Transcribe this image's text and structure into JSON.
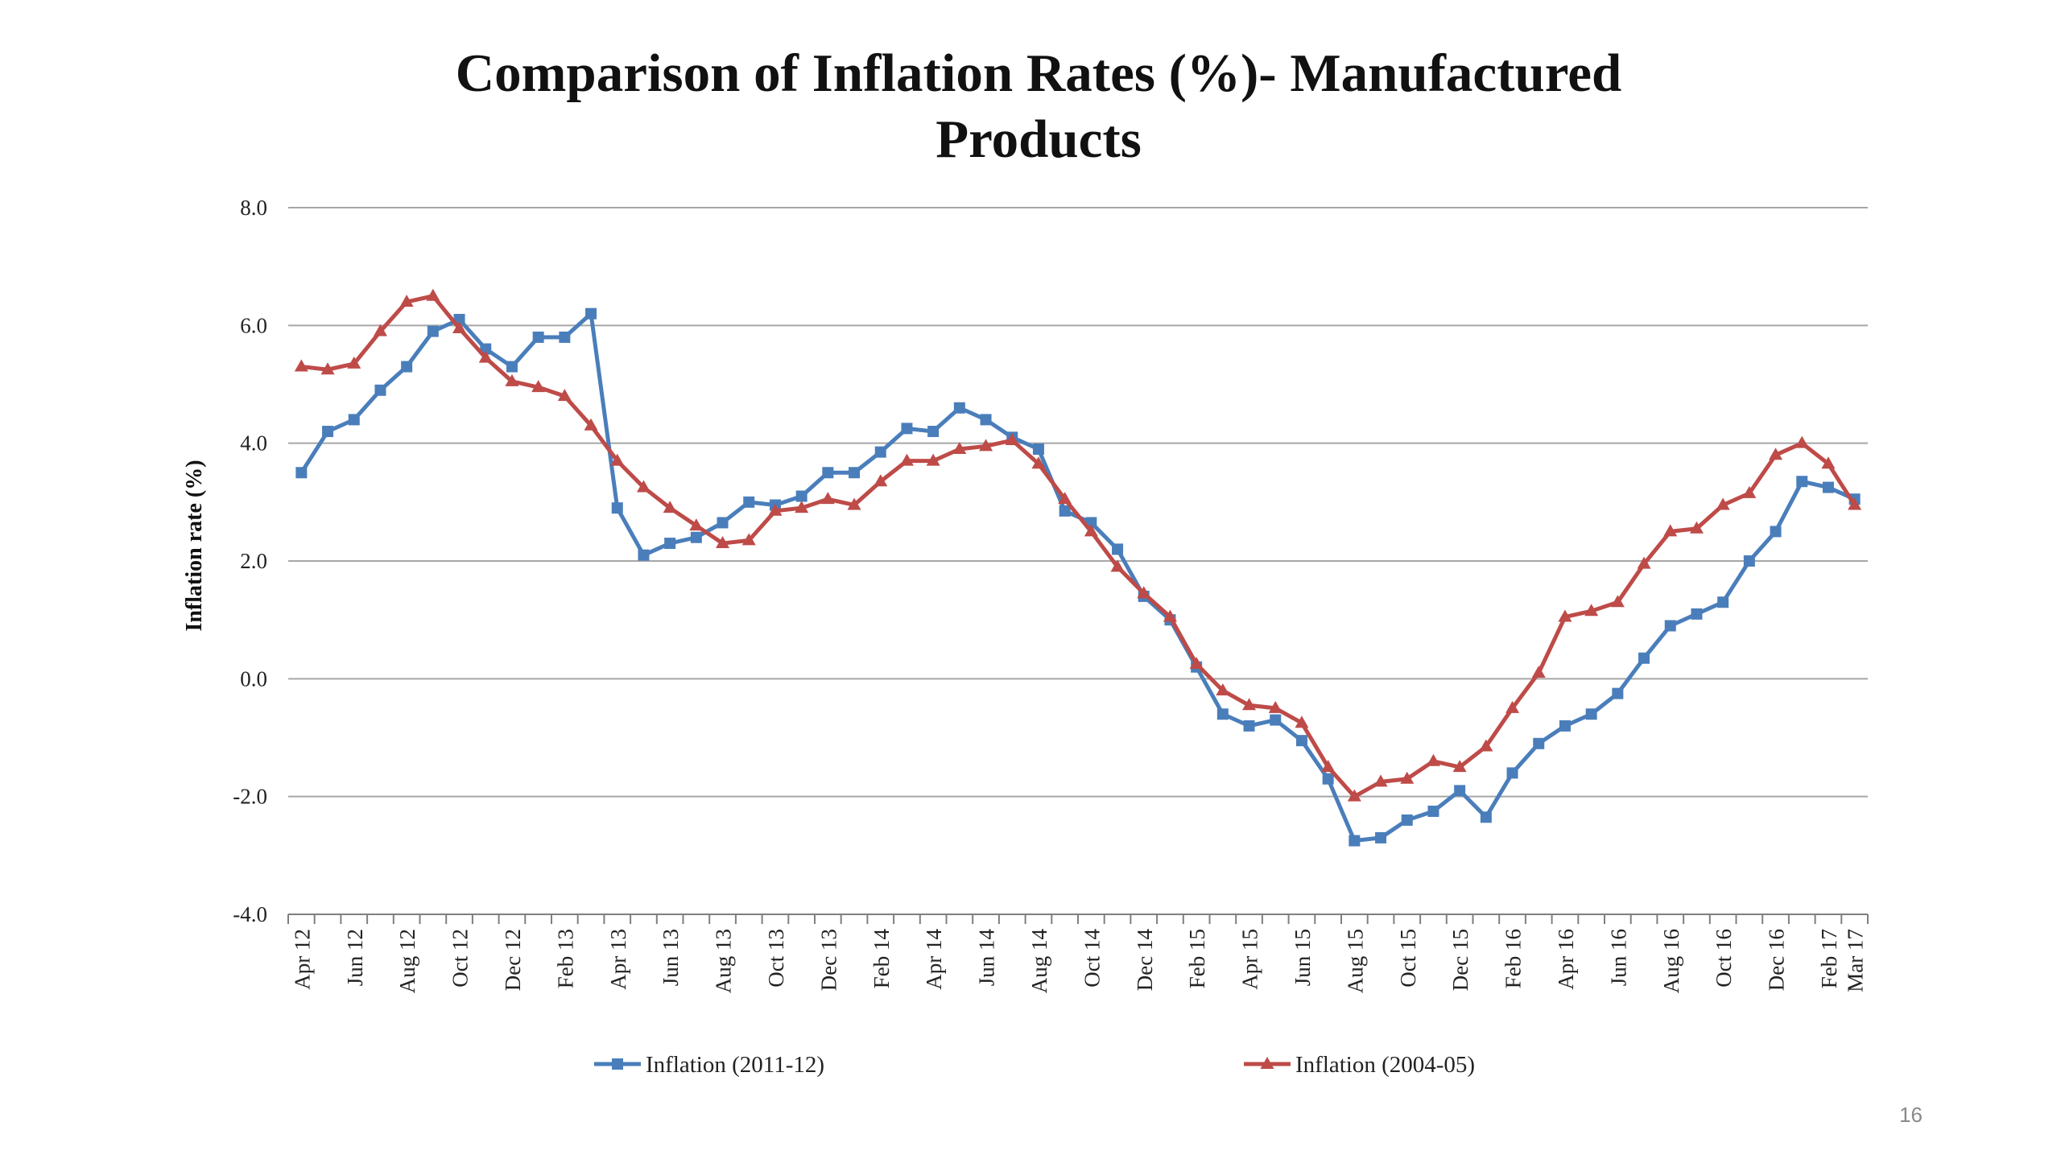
{
  "slide": {
    "title_line1": "Comparison of  Inflation Rates (%)- Manufactured",
    "title_line2": "Products",
    "page_number": "16"
  },
  "colors": {
    "series_2011": "#4a7ebb",
    "series_2004": "#be4b48",
    "grid": "#a6a6a6"
  },
  "chart_data": {
    "type": "line",
    "ylabel": "Inflation rate (%)",
    "ylim": [
      -4.0,
      8.0
    ],
    "ytick_step": 2.0,
    "yticks": [
      "8.0",
      "6.0",
      "4.0",
      "2.0",
      "0.0",
      "-2.0",
      "-4.0"
    ],
    "grid": true,
    "legend_position": "bottom",
    "x": [
      "Apr 12",
      "May 12",
      "Jun 12",
      "Jul 12",
      "Aug 12",
      "Sep 12",
      "Oct 12",
      "Nov 12",
      "Dec 12",
      "Jan 13",
      "Feb 13",
      "Mar 13",
      "Apr 13",
      "May 13",
      "Jun 13",
      "Jul 13",
      "Aug 13",
      "Sep 13",
      "Oct 13",
      "Nov 13",
      "Dec 13",
      "Jan 14",
      "Feb 14",
      "Mar 14",
      "Apr 14",
      "May 14",
      "Jun 14",
      "Jul 14",
      "Aug 14",
      "Sep 14",
      "Oct 14",
      "Nov 14",
      "Dec 14",
      "Jan 15",
      "Feb 15",
      "Mar 15",
      "Apr 15",
      "May 15",
      "Jun 15",
      "Jul 15",
      "Aug 15",
      "Sep 15",
      "Oct 15",
      "Nov 15",
      "Dec 15",
      "Jan 16",
      "Feb 16",
      "Mar 16",
      "Apr 16",
      "May 16",
      "Jun 16",
      "Jul 16",
      "Aug 16",
      "Sep 16",
      "Oct 16",
      "Nov 16",
      "Dec 16",
      "Jan 17",
      "Feb 17",
      "Mar 17"
    ],
    "xtick_labels": [
      "Apr 12",
      "Jun 12",
      "Aug 12",
      "Oct 12",
      "Dec 12",
      "Feb 13",
      "Apr 13",
      "Jun 13",
      "Aug 13",
      "Oct 13",
      "Dec 13",
      "Feb 14",
      "Apr 14",
      "Jun 14",
      "Aug 14",
      "Oct 14",
      "Dec 14",
      "Feb 15",
      "Apr 15",
      "Jun 15",
      "Aug 15",
      "Oct 15",
      "Dec 15",
      "Feb 16",
      "Apr 16",
      "Jun 16",
      "Aug 16",
      "Oct 16",
      "Dec 16",
      "Feb 17",
      "Mar 17"
    ],
    "series": [
      {
        "name": "Inflation (2011-12)",
        "marker": "square",
        "values": [
          3.5,
          4.2,
          4.4,
          4.9,
          5.3,
          5.9,
          6.1,
          5.6,
          5.3,
          5.8,
          5.8,
          6.2,
          2.9,
          2.1,
          2.3,
          2.4,
          2.65,
          3.0,
          2.95,
          3.1,
          3.5,
          3.5,
          3.85,
          4.25,
          4.2,
          4.6,
          4.4,
          4.1,
          3.9,
          2.85,
          2.65,
          2.2,
          1.4,
          1.0,
          0.2,
          -0.6,
          -0.8,
          -0.7,
          -1.05,
          -1.7,
          -2.75,
          -2.7,
          -2.4,
          -2.25,
          -1.9,
          -2.35,
          -1.6,
          -1.1,
          -0.8,
          -0.6,
          -0.25,
          0.35,
          0.9,
          1.1,
          1.3,
          2.0,
          2.5,
          3.35,
          3.25,
          3.05
        ]
      },
      {
        "name": "Inflation (2004-05)",
        "marker": "triangle",
        "values": [
          5.3,
          5.25,
          5.35,
          5.9,
          6.4,
          6.5,
          5.95,
          5.45,
          5.05,
          4.95,
          4.8,
          4.3,
          3.7,
          3.25,
          2.9,
          2.6,
          2.3,
          2.35,
          2.85,
          2.9,
          3.05,
          2.95,
          3.35,
          3.7,
          3.7,
          3.9,
          3.95,
          4.05,
          3.65,
          3.05,
          2.5,
          1.9,
          1.45,
          1.05,
          0.25,
          -0.2,
          -0.45,
          -0.5,
          -0.75,
          -1.5,
          -2.0,
          -1.75,
          -1.7,
          -1.4,
          -1.5,
          -1.15,
          -0.5,
          0.1,
          1.05,
          1.15,
          1.3,
          1.95,
          2.5,
          2.55,
          2.95,
          3.15,
          3.8,
          4.0,
          3.65,
          2.95
        ]
      }
    ]
  }
}
